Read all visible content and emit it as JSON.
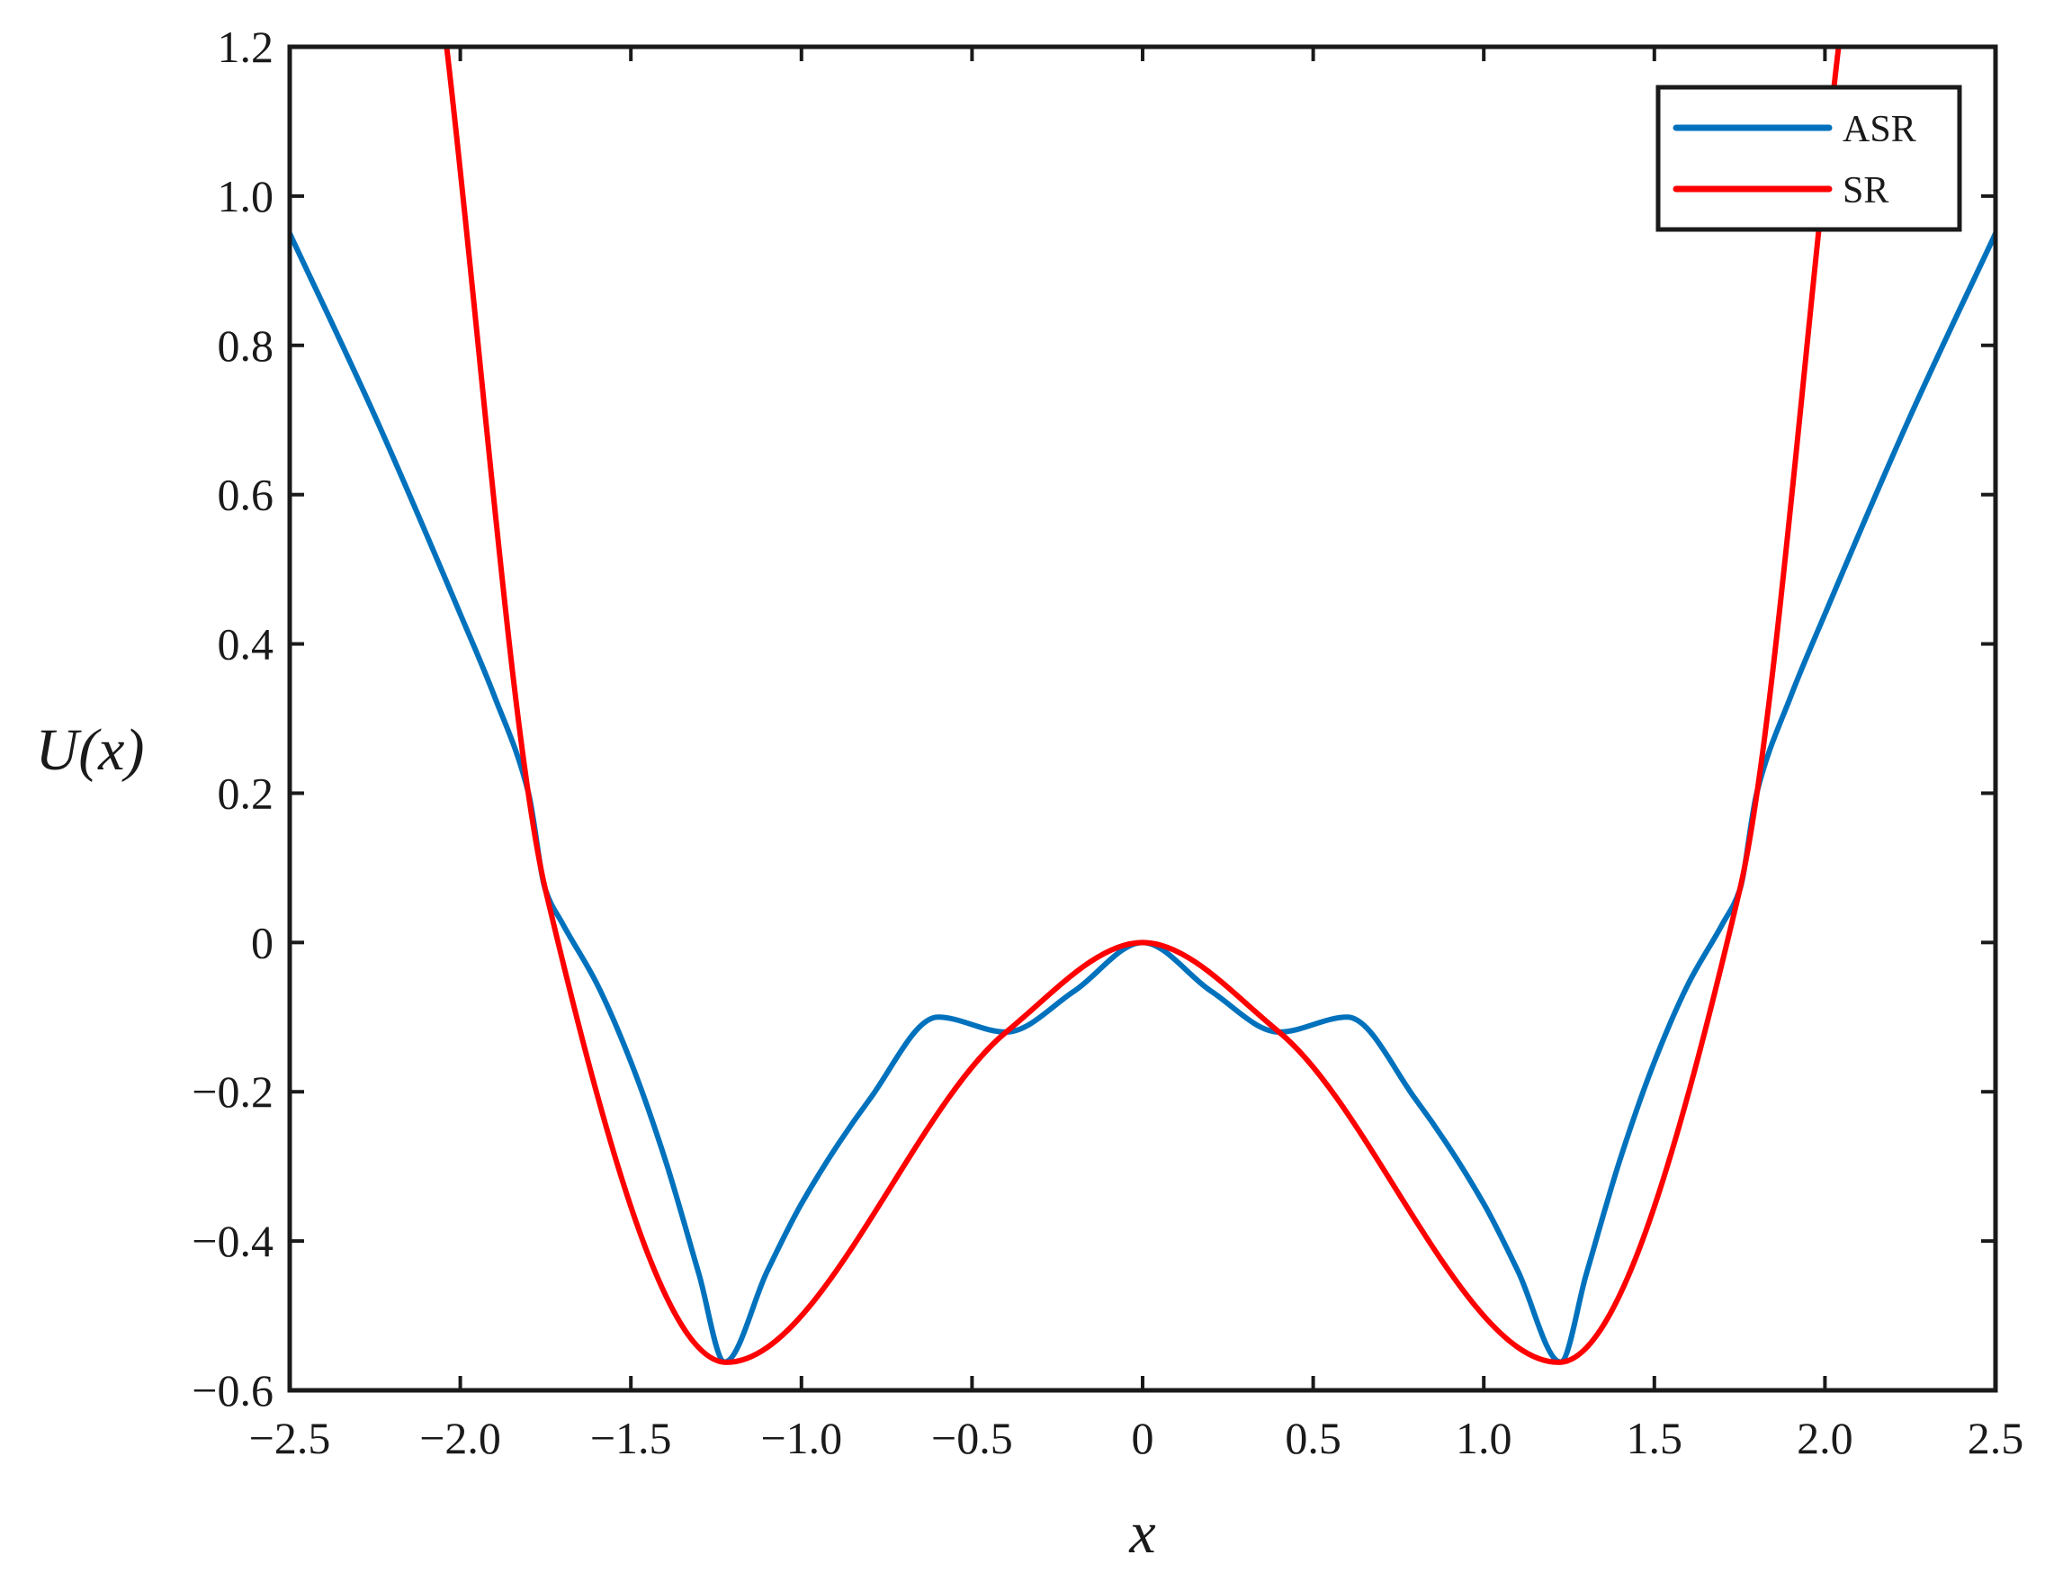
{
  "chart_data": {
    "type": "line",
    "xlabel": "x",
    "ylabel": "U(x)",
    "xlim": [
      -2.5,
      2.5
    ],
    "ylim": [
      -0.6,
      1.2
    ],
    "xticks": [
      -2.5,
      -2.0,
      -1.5,
      -1.0,
      -0.5,
      0,
      0.5,
      1.0,
      1.5,
      2.0,
      2.5
    ],
    "xtick_labels": [
      "−2.5",
      "−2.0",
      "−1.5",
      "−1.0",
      "−0.5",
      "0",
      "0.5",
      "1.0",
      "1.5",
      "2.0",
      "2.5"
    ],
    "yticks": [
      -0.6,
      -0.4,
      -0.2,
      0,
      0.2,
      0.4,
      0.6,
      0.8,
      1.0,
      1.2
    ],
    "ytick_labels": [
      "−0.6",
      "−0.4",
      "−0.2",
      "0",
      "0.2",
      "0.4",
      "0.6",
      "0.8",
      "1.0",
      "1.2"
    ],
    "grid": false,
    "legend_position": "top-right",
    "series": [
      {
        "name": "ASR",
        "color": "#0072BD",
        "points": [
          [
            -2.5,
            0.95
          ],
          [
            -2.25,
            0.705
          ],
          [
            -2.0,
            0.44
          ],
          [
            -1.9,
            0.33
          ],
          [
            -1.8,
            0.2
          ],
          [
            -1.75,
            0.07
          ],
          [
            -1.7,
            0.025
          ],
          [
            -1.6,
            -0.055
          ],
          [
            -1.5,
            -0.16
          ],
          [
            -1.4,
            -0.29
          ],
          [
            -1.3,
            -0.445
          ],
          [
            -1.225,
            -0.562
          ],
          [
            -1.1,
            -0.44
          ],
          [
            -1.0,
            -0.35
          ],
          [
            -0.8,
            -0.21
          ],
          [
            -0.6,
            -0.1
          ],
          [
            -0.4,
            -0.12
          ],
          [
            -0.2,
            -0.065
          ],
          [
            0,
            0
          ],
          [
            0.2,
            -0.065
          ],
          [
            0.4,
            -0.12
          ],
          [
            0.6,
            -0.1
          ],
          [
            0.8,
            -0.21
          ],
          [
            1.0,
            -0.35
          ],
          [
            1.1,
            -0.44
          ],
          [
            1.225,
            -0.562
          ],
          [
            1.3,
            -0.445
          ],
          [
            1.4,
            -0.29
          ],
          [
            1.5,
            -0.16
          ],
          [
            1.6,
            -0.055
          ],
          [
            1.7,
            0.025
          ],
          [
            1.75,
            0.07
          ],
          [
            1.8,
            0.2
          ],
          [
            1.9,
            0.33
          ],
          [
            2.0,
            0.44
          ],
          [
            2.25,
            0.705
          ],
          [
            2.5,
            0.95
          ]
        ]
      },
      {
        "name": "SR",
        "color": "#FF0000",
        "points": [
          [
            -2.04,
            1.2
          ],
          [
            -1.75,
            0.07
          ],
          [
            -1.22,
            -0.5625
          ],
          [
            -0.4,
            -0.12
          ],
          [
            0,
            0
          ],
          [
            0.4,
            -0.12
          ],
          [
            1.22,
            -0.5625
          ],
          [
            1.75,
            0.07
          ],
          [
            2.04,
            1.2
          ]
        ]
      }
    ]
  }
}
